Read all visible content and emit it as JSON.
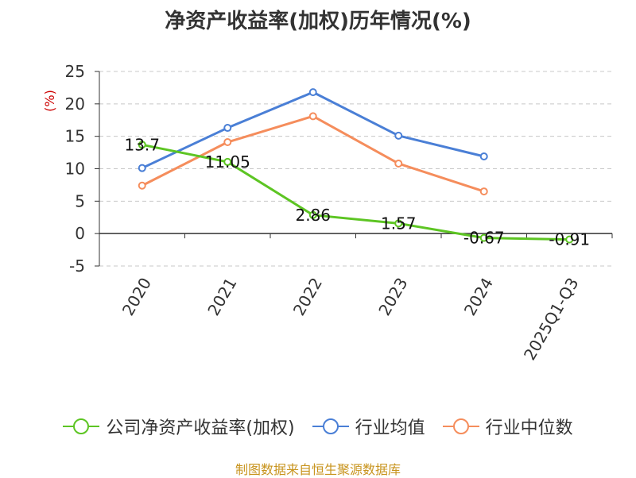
{
  "chart_data": {
    "type": "line",
    "title": "净资产收益率(加权)历年情况(%)",
    "ylabel": "(%)",
    "xlabel": "",
    "categories": [
      "2020",
      "2021",
      "2022",
      "2023",
      "2024",
      "2025Q1-Q3"
    ],
    "ylim": [
      -5,
      25
    ],
    "yticks": [
      -5,
      0,
      5,
      10,
      15,
      20,
      25
    ],
    "grid": true,
    "legend_position": "bottom",
    "series": [
      {
        "name": "公司净资产收益率(加权)",
        "color": "#5dc523",
        "values": [
          13.7,
          11.05,
          2.86,
          1.57,
          -0.67,
          -0.91
        ],
        "labels": [
          "13.7",
          "11.05",
          "2.86",
          "1.57",
          "-0.67",
          "-0.91"
        ]
      },
      {
        "name": "行业均值",
        "color": "#4a7fd6",
        "values": [
          10.1,
          16.3,
          21.8,
          15.1,
          11.9,
          null
        ]
      },
      {
        "name": "行业中位数",
        "color": "#f58d5c",
        "values": [
          7.4,
          14.1,
          18.1,
          10.8,
          6.5,
          null
        ]
      }
    ]
  },
  "source": "制图数据来自恒生聚源数据库"
}
